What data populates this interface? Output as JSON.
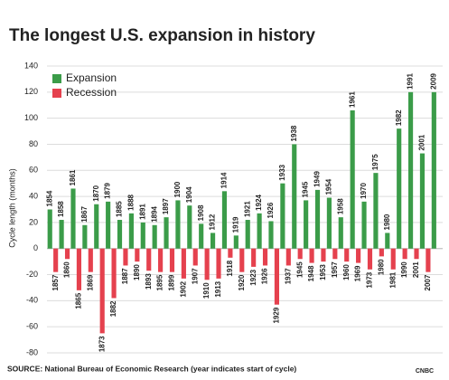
{
  "chart_data": {
    "type": "bar",
    "title": "The longest U.S. expansion in history",
    "y_label": "Cycle length (months)",
    "source": "SOURCE: National Bureau of Economic Research (year indicates start of cycle)",
    "logo": "CNBC",
    "ylim": [
      -80,
      140
    ],
    "yticks": [
      -80,
      -60,
      -40,
      -20,
      0,
      20,
      40,
      60,
      80,
      100,
      120,
      140
    ],
    "grid": true,
    "legend": "top-left",
    "series": [
      {
        "name": "Expansion",
        "color": "#3b9c49",
        "labels": [
          "1854",
          "1858",
          "1861",
          "1867",
          "1870",
          "1879",
          "1885",
          "1888",
          "1891",
          "1894",
          "1897",
          "1900",
          "1904",
          "1908",
          "1912",
          "1914",
          "1919",
          "1921",
          "1924",
          "1926",
          "1933",
          "1938",
          "1945",
          "1949",
          "1954",
          "1958",
          "1961",
          "1970",
          "1975",
          "1980",
          "1982",
          "1991",
          "2001",
          "2009"
        ],
        "values": [
          30,
          22,
          46,
          18,
          34,
          36,
          22,
          27,
          20,
          18,
          24,
          37,
          33,
          19,
          12,
          44,
          10,
          22,
          27,
          21,
          50,
          80,
          37,
          45,
          39,
          24,
          106,
          36,
          58,
          12,
          92,
          120,
          73,
          120
        ]
      },
      {
        "name": "Recession",
        "color": "#e5414e",
        "labels": [
          "1857",
          "1860",
          "1865",
          "1869",
          "1873",
          "1882",
          "1887",
          "1890",
          "1893",
          "1895",
          "1899",
          "1902",
          "1907",
          "1910",
          "1913",
          "1918",
          "1920",
          "1923",
          "1926",
          "1929",
          "1937",
          "1945",
          "1948",
          "1953",
          "1957",
          "1960",
          "1969",
          "1973",
          "1980",
          "1981",
          "1990",
          "2001",
          "2007"
        ],
        "values": [
          -18,
          -8,
          -32,
          -18,
          -65,
          -38,
          -13,
          -10,
          -17,
          -18,
          -18,
          -23,
          -13,
          -24,
          -23,
          -7,
          -18,
          -14,
          -13,
          -43,
          -13,
          -8,
          -11,
          -10,
          -8,
          -10,
          -11,
          -16,
          -6,
          -16,
          -8,
          -8,
          -18
        ]
      }
    ]
  }
}
